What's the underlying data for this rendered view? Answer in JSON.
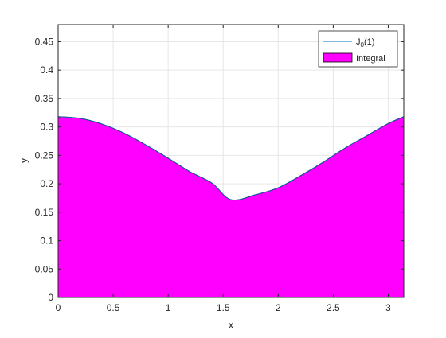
{
  "chart_data": {
    "type": "area",
    "title": "",
    "xlabel": "x",
    "ylabel": "y",
    "xlim": [
      0,
      3.14159
    ],
    "ylim": [
      0,
      0.48
    ],
    "grid": true,
    "legend_position": "top-right",
    "xticks": [
      0,
      0.5,
      1,
      1.5,
      2,
      2.5,
      3
    ],
    "xtick_labels": [
      "0",
      "0.5",
      "1",
      "1.5",
      "2",
      "2.5",
      "3"
    ],
    "yticks": [
      0,
      0.05,
      0.1,
      0.15,
      0.2,
      0.25,
      0.3,
      0.35,
      0.4,
      0.45
    ],
    "ytick_labels": [
      "0",
      "0.05",
      "0.1",
      "0.15",
      "0.2",
      "0.25",
      "0.3",
      "0.35",
      "0.4",
      "0.45"
    ],
    "series": [
      {
        "name": "J0(1)",
        "legend_main": "J",
        "legend_sub": "0",
        "legend_tail": "(1)",
        "kind": "line",
        "color": "#0072BD",
        "x": [
          0,
          0.2,
          0.4,
          0.6,
          0.8,
          1.0,
          1.2,
          1.4,
          1.5708,
          1.8,
          2.0,
          2.2,
          2.4,
          2.6,
          2.8,
          3.0,
          3.14159
        ],
        "y": [
          0.318,
          0.315,
          0.305,
          0.289,
          0.268,
          0.245,
          0.221,
          0.201,
          0.172,
          0.181,
          0.193,
          0.214,
          0.237,
          0.262,
          0.284,
          0.306,
          0.318
        ]
      },
      {
        "name": "Integral",
        "kind": "area",
        "color": "#FF00FF",
        "edge_color": "#000000",
        "x": [
          0,
          0.2,
          0.4,
          0.6,
          0.8,
          1.0,
          1.2,
          1.4,
          1.5708,
          1.8,
          2.0,
          2.2,
          2.4,
          2.6,
          2.8,
          3.0,
          3.14159
        ],
        "y": [
          0.318,
          0.315,
          0.305,
          0.289,
          0.268,
          0.245,
          0.221,
          0.201,
          0.172,
          0.181,
          0.193,
          0.214,
          0.237,
          0.262,
          0.284,
          0.306,
          0.318
        ]
      }
    ]
  }
}
